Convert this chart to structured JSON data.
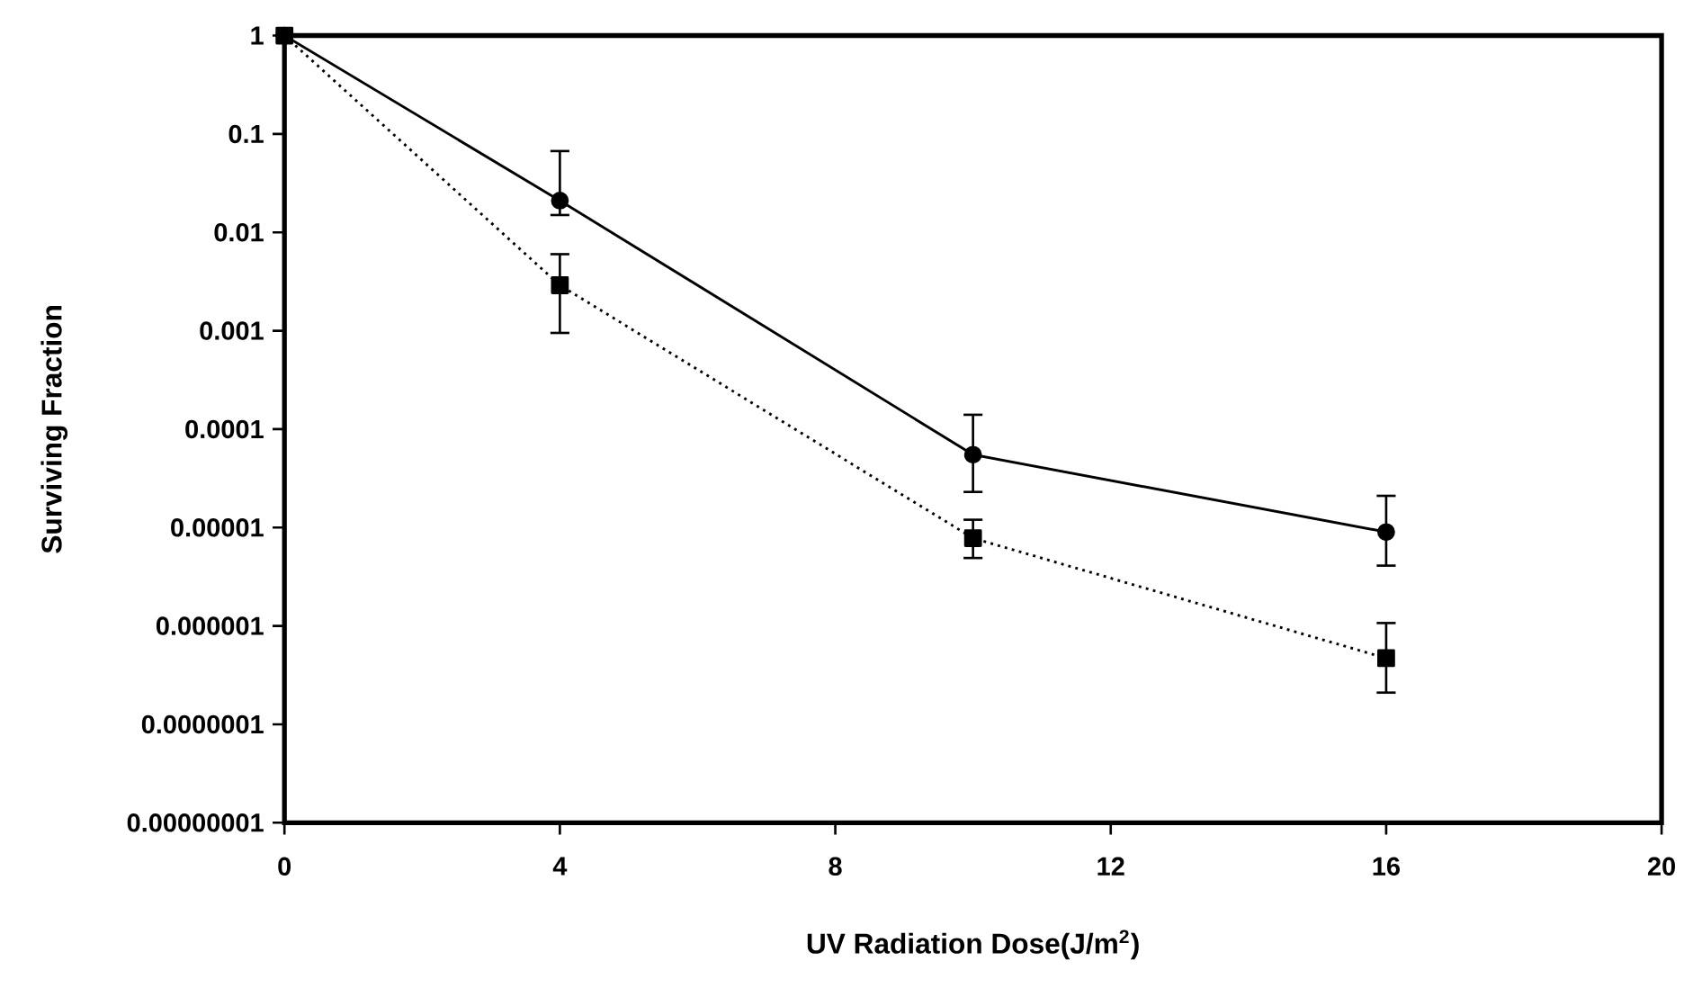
{
  "chart_data": {
    "type": "line",
    "xlabel": "UV Radiation Dose(J/m$^{2}$)",
    "ylabel": "Surviving Fraction",
    "log": true,
    "xlim": [
      0,
      20
    ],
    "xticks": [
      0,
      4,
      8,
      12,
      16,
      20
    ],
    "ylim": [
      1e-08,
      1
    ],
    "yticks": [
      1,
      0.1,
      0.01,
      0.001,
      0.0001,
      {
        "value": 1e-05,
        "label": "0.00001"
      },
      {
        "value": 1e-06,
        "label": "0.000001"
      },
      {
        "value": 1e-07,
        "label": "0.0000001"
      },
      {
        "value": 1e-08,
        "label": "0.00000001"
      }
    ],
    "series": [
      {
        "color": "#000000",
        "marker": "circle",
        "line_style": "solid",
        "x": [
          0,
          4,
          10,
          16
        ],
        "values": [
          1,
          0.021,
          5.5e-05,
          9e-06
        ],
        "errors": [
          null,
          [
            0.015,
            0.067
          ],
          [
            2.3e-05,
            0.00014
          ],
          [
            4.1e-06,
            2.1e-05
          ]
        ]
      },
      {
        "color": "#000000",
        "marker": "square",
        "line_style": "dotted",
        "x": [
          0,
          4,
          10,
          16
        ],
        "values": [
          1,
          0.0029,
          7.8e-06,
          4.7e-07
        ],
        "errors": [
          null,
          [
            0.00095,
            0.006
          ],
          [
            4.9e-06,
            1.2e-05
          ],
          [
            2.1e-07,
            1.07e-06
          ]
        ]
      }
    ]
  }
}
